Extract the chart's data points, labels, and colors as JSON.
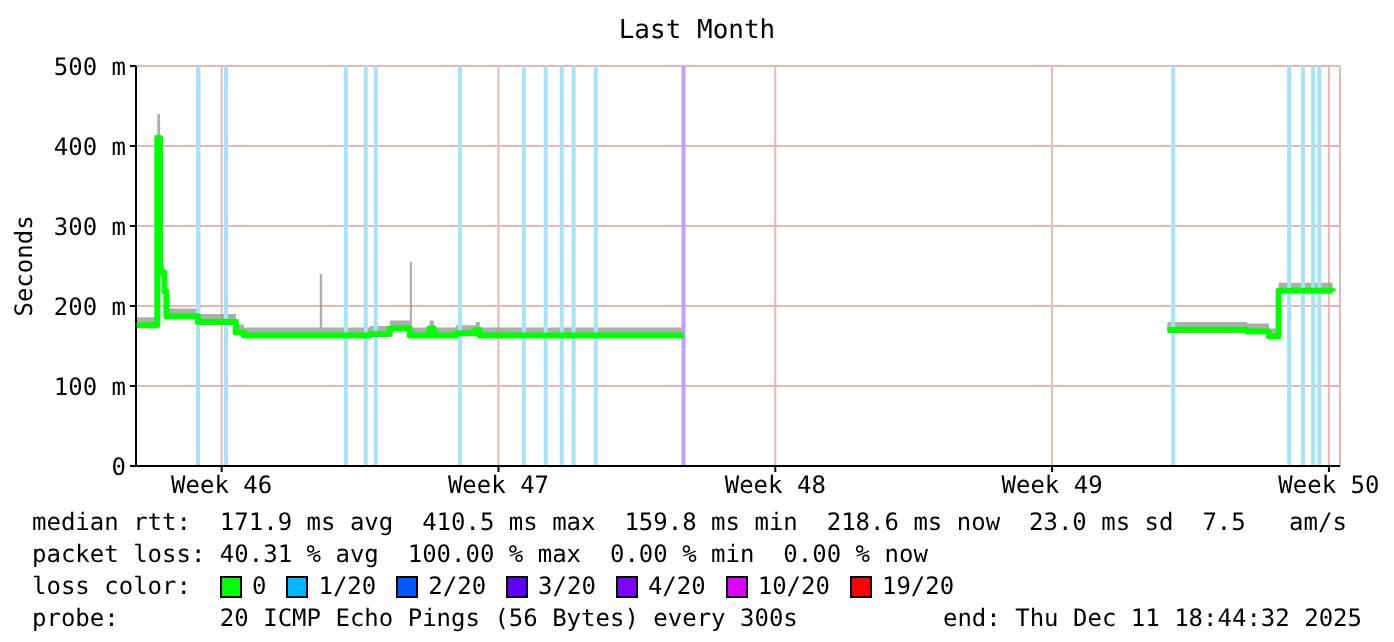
{
  "chart_data": {
    "type": "step",
    "title": "Last Month",
    "ylabel": "Seconds",
    "legend_title": "loss color:",
    "legend": "bottom",
    "grid": true,
    "marker": "none",
    "line_style": "solid",
    "x": [
      "2025-11-11T08:00",
      "2025-11-11T18:55",
      "2025-11-11T20:56",
      "2025-11-11T22:37",
      "2025-11-12T01:18",
      "2025-11-12T02:29",
      "2025-11-12T21:38",
      "2025-11-12T23:00",
      "2025-11-13T19:28",
      "2025-11-13T20:39",
      "2025-11-14T01:31",
      "2025-11-15T23:33",
      "2025-11-16T01:00",
      "2025-11-17T03:26",
      "2025-11-17T05:58",
      "2025-11-17T15:42",
      "2025-11-17T18:03",
      "2025-11-18T04:59",
      "2025-11-18T06:09",
      "2025-11-18T07:30",
      "2025-11-18T15:54",
      "2025-11-18T18:15",
      "2025-11-18T20:46",
      "2025-11-19T08:52",
      "2025-11-19T10:02",
      "2025-11-19T19:47",
      "2025-11-19T22:08",
      "2025-11-20T00:39",
      "2025-11-25T04:18",
      "2025-12-01T05:07",
      "2025-12-07T09:58",
      "2025-12-09T08:00",
      "2025-12-09T10:21",
      "2025-12-09T21:16",
      "2025-12-09T23:37",
      "2025-12-10T01:58",
      "2025-12-10T04:20",
      "2025-12-10T05:30",
      "2025-12-11T14:16"
    ],
    "xlim": [
      "2025-11-11T08:00",
      "2025-12-11T18:44"
    ],
    "xticks": [
      {
        "value": "2025-11-13T12:00",
        "label": "Week 46"
      },
      {
        "value": "2025-11-20T12:00",
        "label": "Week 47"
      },
      {
        "value": "2025-11-27T12:00",
        "label": "Week 48"
      },
      {
        "value": "2025-12-04T12:00",
        "label": "Week 49"
      },
      {
        "value": "2025-12-11T12:00",
        "label": "Week 50"
      }
    ],
    "ylim": [
      0,
      500
    ],
    "yticks": [
      0,
      {
        "value": 100,
        "label": "100 m"
      },
      {
        "value": 200,
        "label": "200 m"
      },
      {
        "value": 300,
        "label": "300 m"
      },
      {
        "value": 400,
        "label": "400 m"
      },
      {
        "value": 500,
        "label": "500 m"
      }
    ],
    "series": [
      {
        "name": "0",
        "color": "#00ff00",
        "values": [
          176,
          176,
          410,
          242,
          218,
          187,
          180,
          180,
          180,
          167,
          163,
          163,
          163,
          163,
          165,
          165,
          172,
          172,
          163,
          163,
          163,
          172,
          163,
          163,
          166,
          166,
          170,
          163,
          163,
          null,
          170,
          170,
          168,
          168,
          162,
          162,
          162,
          219,
          218
        ],
        "lower": [
          176,
          176,
          410,
          242,
          218,
          187,
          180,
          180,
          180,
          167,
          163,
          163,
          163,
          163,
          165,
          165,
          172,
          172,
          163,
          163,
          163,
          172,
          163,
          163,
          166,
          166,
          170,
          163,
          163,
          null,
          170,
          170,
          168,
          168,
          162,
          162,
          162,
          219,
          218
        ],
        "upper": [
          186,
          186,
          440,
          252,
          228,
          197,
          500,
          190,
          190,
          177,
          173,
          240,
          173,
          173,
          175,
          175,
          182,
          182,
          255,
          173,
          173,
          182,
          173,
          173,
          176,
          176,
          180,
          173,
          173,
          null,
          180,
          180,
          178,
          178,
          172,
          172,
          172,
          229,
          228
        ]
      },
      {
        "name": "1/20",
        "color": "#00b8ff",
        "values": [
          null,
          null,
          null,
          null,
          null,
          null,
          null,
          null,
          null,
          null,
          null,
          null,
          null,
          null,
          null,
          null,
          null,
          null,
          null,
          null,
          null,
          null,
          null,
          null,
          null,
          null,
          null,
          null,
          null,
          null,
          null,
          null,
          null,
          null,
          null,
          null,
          null,
          null,
          null
        ]
      },
      {
        "name": "2/20",
        "color": "#0059ff",
        "values": [
          null,
          null,
          null,
          null,
          null,
          null,
          null,
          null,
          null,
          null,
          null,
          null,
          null,
          null,
          null,
          null,
          null,
          null,
          null,
          null,
          null,
          null,
          null,
          null,
          null,
          null,
          null,
          null,
          null,
          null,
          null,
          null,
          null,
          null,
          null,
          null,
          null,
          null,
          null
        ]
      },
      {
        "name": "3/20",
        "color": "#5e00ff",
        "values": [
          null,
          null,
          null,
          null,
          null,
          null,
          null,
          null,
          null,
          null,
          null,
          null,
          null,
          null,
          null,
          null,
          null,
          null,
          null,
          null,
          null,
          null,
          null,
          null,
          null,
          null,
          null,
          null,
          null,
          null,
          null,
          null,
          null,
          null,
          null,
          null,
          null,
          null,
          null
        ]
      },
      {
        "name": "4/20",
        "color": "#7e00ff",
        "values": [
          null,
          null,
          null,
          null,
          null,
          null,
          null,
          null,
          null,
          null,
          null,
          null,
          null,
          null,
          null,
          null,
          null,
          null,
          null,
          null,
          null,
          null,
          null,
          null,
          null,
          null,
          null,
          null,
          null,
          null,
          null,
          null,
          null,
          null,
          null,
          null,
          null,
          null,
          null
        ]
      },
      {
        "name": "10/20",
        "color": "#dd00ff",
        "values": [
          null,
          null,
          null,
          null,
          null,
          null,
          null,
          null,
          null,
          null,
          null,
          null,
          null,
          null,
          null,
          null,
          null,
          null,
          null,
          null,
          null,
          null,
          null,
          null,
          null,
          null,
          null,
          null,
          null,
          null,
          null,
          null,
          null,
          null,
          null,
          null,
          null,
          null,
          null
        ]
      },
      {
        "name": "19/20",
        "color": "#ff0000",
        "values": [
          null,
          null,
          null,
          null,
          null,
          null,
          null,
          null,
          null,
          null,
          null,
          null,
          null,
          null,
          null,
          null,
          null,
          null,
          null,
          null,
          null,
          null,
          null,
          null,
          null,
          null,
          null,
          null,
          null,
          null,
          null,
          null,
          null,
          null,
          null,
          null,
          null,
          null,
          null
        ]
      }
    ],
    "ref_lines": [
      {
        "axis": "x",
        "value": "2025-11-12T21:38",
        "color": "#a6e2f8"
      },
      {
        "axis": "x",
        "value": "2025-11-13T14:36",
        "color": "#a6e2f8"
      },
      {
        "axis": "x",
        "value": "2025-11-16T15:21",
        "color": "#a6e2f8"
      },
      {
        "axis": "x",
        "value": "2025-11-17T03:26",
        "color": "#a6e2f8"
      },
      {
        "axis": "x",
        "value": "2025-11-17T09:29",
        "color": "#a6e2f8"
      },
      {
        "axis": "x",
        "value": "2025-11-19T12:34",
        "color": "#a6e2f8"
      },
      {
        "axis": "x",
        "value": "2025-11-21T03:22",
        "color": "#a6e2f8"
      },
      {
        "axis": "x",
        "value": "2025-11-21T16:38",
        "color": "#a6e2f8"
      },
      {
        "axis": "x",
        "value": "2025-11-22T02:23",
        "color": "#a6e2f8"
      },
      {
        "axis": "x",
        "value": "2025-11-22T09:36",
        "color": "#a6e2f8"
      },
      {
        "axis": "x",
        "value": "2025-11-22T23:03",
        "color": "#a6e2f8"
      },
      {
        "axis": "x",
        "value": "2025-11-25T04:18",
        "color": "#bfa0ff"
      },
      {
        "axis": "x",
        "value": "2025-12-07T13:30",
        "color": "#a6e2f8"
      },
      {
        "axis": "x",
        "value": "2025-12-10T11:53",
        "color": "#a6e2f8"
      },
      {
        "axis": "x",
        "value": "2025-12-10T20:17",
        "color": "#a6e2f8"
      },
      {
        "axis": "x",
        "value": "2025-12-11T02:30",
        "color": "#a6e2f8"
      },
      {
        "axis": "x",
        "value": "2025-12-11T06:12",
        "color": "#a6e2f8"
      }
    ],
    "annotations": [
      "median rtt:  171.9 ms avg  410.5 ms max  159.8 ms min  218.6 ms now  23.0 ms sd  7.5   am/s",
      "packet loss: 40.31 % avg  100.00 % max  0.00 % min  0.00 % now",
      "probe:       20 ICMP Echo Pings (56 Bytes) every 300s",
      "end: Thu Dec 11 18:44:32 2025"
    ]
  }
}
